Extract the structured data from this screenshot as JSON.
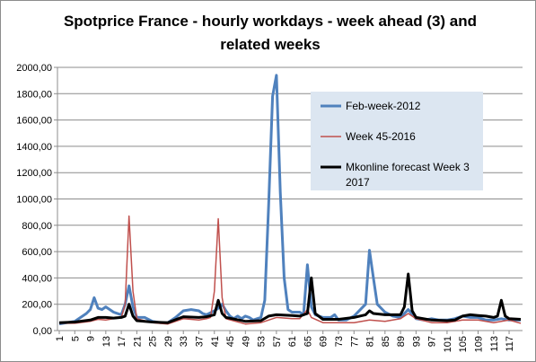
{
  "chart_data": {
    "type": "line",
    "title": "Spotprice France - hourly workdays - week ahead (3) and related weeks",
    "xlabel": "",
    "ylabel": "",
    "ylim": [
      0,
      2000
    ],
    "xlim": [
      1,
      120
    ],
    "grid": true,
    "legend_position": "right",
    "y_ticks": [
      "0,00",
      "200,00",
      "400,00",
      "600,00",
      "800,00",
      "1000,00",
      "1200,00",
      "1400,00",
      "1600,00",
      "1800,00",
      "2000,00"
    ],
    "x_ticks": [
      "1",
      "5",
      "9",
      "13",
      "17",
      "21",
      "25",
      "29",
      "33",
      "37",
      "41",
      "45",
      "49",
      "53",
      "57",
      "61",
      "65",
      "69",
      "73",
      "77",
      "81",
      "85",
      "89",
      "93",
      "97",
      "101",
      "105",
      "109",
      "113",
      "117"
    ],
    "series": [
      {
        "name": "Feb-week-2012",
        "color": "#4f81bd",
        "points": [
          [
            1,
            50
          ],
          [
            3,
            60
          ],
          [
            5,
            70
          ],
          [
            8,
            130
          ],
          [
            9,
            160
          ],
          [
            10,
            250
          ],
          [
            11,
            170
          ],
          [
            12,
            160
          ],
          [
            13,
            180
          ],
          [
            15,
            140
          ],
          [
            17,
            120
          ],
          [
            18,
            200
          ],
          [
            19,
            340
          ],
          [
            20,
            180
          ],
          [
            21,
            100
          ],
          [
            23,
            100
          ],
          [
            25,
            70
          ],
          [
            27,
            60
          ],
          [
            29,
            60
          ],
          [
            31,
            100
          ],
          [
            33,
            150
          ],
          [
            35,
            160
          ],
          [
            37,
            150
          ],
          [
            38,
            130
          ],
          [
            39,
            120
          ],
          [
            41,
            150
          ],
          [
            42,
            170
          ],
          [
            43,
            200
          ],
          [
            44,
            150
          ],
          [
            45,
            110
          ],
          [
            46,
            90
          ],
          [
            47,
            110
          ],
          [
            48,
            90
          ],
          [
            49,
            110
          ],
          [
            50,
            100
          ],
          [
            51,
            80
          ],
          [
            52,
            90
          ],
          [
            53,
            100
          ],
          [
            54,
            230
          ],
          [
            55,
            950
          ],
          [
            56,
            1780
          ],
          [
            57,
            1940
          ],
          [
            58,
            1050
          ],
          [
            59,
            400
          ],
          [
            60,
            160
          ],
          [
            61,
            140
          ],
          [
            63,
            140
          ],
          [
            64,
            120
          ],
          [
            65,
            500
          ],
          [
            66,
            180
          ],
          [
            67,
            120
          ],
          [
            69,
            100
          ],
          [
            71,
            100
          ],
          [
            72,
            120
          ],
          [
            73,
            80
          ],
          [
            75,
            80
          ],
          [
            77,
            110
          ],
          [
            79,
            170
          ],
          [
            80,
            200
          ],
          [
            81,
            610
          ],
          [
            82,
            400
          ],
          [
            83,
            200
          ],
          [
            85,
            140
          ],
          [
            87,
            110
          ],
          [
            89,
            100
          ],
          [
            91,
            160
          ],
          [
            93,
            90
          ],
          [
            95,
            80
          ],
          [
            97,
            90
          ],
          [
            99,
            80
          ],
          [
            101,
            80
          ],
          [
            103,
            90
          ],
          [
            105,
            110
          ],
          [
            107,
            100
          ],
          [
            109,
            100
          ],
          [
            111,
            80
          ],
          [
            113,
            80
          ],
          [
            115,
            90
          ],
          [
            117,
            80
          ],
          [
            120,
            80
          ]
        ]
      },
      {
        "name": "Week 45-2016",
        "color": "#c0504d",
        "points": [
          [
            1,
            55
          ],
          [
            5,
            55
          ],
          [
            9,
            70
          ],
          [
            11,
            85
          ],
          [
            13,
            80
          ],
          [
            15,
            90
          ],
          [
            17,
            100
          ],
          [
            18,
            200
          ],
          [
            19,
            870
          ],
          [
            20,
            300
          ],
          [
            21,
            90
          ],
          [
            25,
            60
          ],
          [
            29,
            50
          ],
          [
            33,
            90
          ],
          [
            37,
            80
          ],
          [
            39,
            90
          ],
          [
            40,
            100
          ],
          [
            41,
            300
          ],
          [
            42,
            850
          ],
          [
            43,
            250
          ],
          [
            44,
            90
          ],
          [
            49,
            50
          ],
          [
            53,
            60
          ],
          [
            57,
            100
          ],
          [
            61,
            90
          ],
          [
            63,
            90
          ],
          [
            65,
            160
          ],
          [
            66,
            100
          ],
          [
            69,
            60
          ],
          [
            73,
            60
          ],
          [
            77,
            60
          ],
          [
            81,
            80
          ],
          [
            85,
            70
          ],
          [
            89,
            90
          ],
          [
            91,
            130
          ],
          [
            93,
            90
          ],
          [
            97,
            60
          ],
          [
            101,
            60
          ],
          [
            105,
            80
          ],
          [
            109,
            80
          ],
          [
            113,
            60
          ],
          [
            117,
            80
          ],
          [
            120,
            55
          ]
        ]
      },
      {
        "name": "Mkonline forecast Week 3 2017",
        "color": "#000000",
        "points": [
          [
            1,
            60
          ],
          [
            5,
            65
          ],
          [
            9,
            80
          ],
          [
            11,
            100
          ],
          [
            13,
            100
          ],
          [
            15,
            95
          ],
          [
            17,
            100
          ],
          [
            18,
            110
          ],
          [
            19,
            200
          ],
          [
            20,
            110
          ],
          [
            21,
            75
          ],
          [
            25,
            65
          ],
          [
            29,
            60
          ],
          [
            33,
            105
          ],
          [
            37,
            100
          ],
          [
            39,
            105
          ],
          [
            41,
            120
          ],
          [
            42,
            230
          ],
          [
            43,
            130
          ],
          [
            44,
            100
          ],
          [
            49,
            70
          ],
          [
            53,
            75
          ],
          [
            55,
            110
          ],
          [
            57,
            120
          ],
          [
            61,
            115
          ],
          [
            63,
            110
          ],
          [
            65,
            130
          ],
          [
            66,
            400
          ],
          [
            67,
            130
          ],
          [
            69,
            85
          ],
          [
            73,
            85
          ],
          [
            77,
            100
          ],
          [
            80,
            120
          ],
          [
            81,
            150
          ],
          [
            82,
            130
          ],
          [
            85,
            120
          ],
          [
            89,
            120
          ],
          [
            90,
            180
          ],
          [
            91,
            430
          ],
          [
            92,
            150
          ],
          [
            93,
            100
          ],
          [
            97,
            80
          ],
          [
            101,
            75
          ],
          [
            103,
            80
          ],
          [
            105,
            110
          ],
          [
            107,
            120
          ],
          [
            109,
            115
          ],
          [
            111,
            110
          ],
          [
            113,
            100
          ],
          [
            114,
            110
          ],
          [
            115,
            230
          ],
          [
            116,
            110
          ],
          [
            117,
            90
          ],
          [
            120,
            85
          ]
        ]
      }
    ]
  }
}
